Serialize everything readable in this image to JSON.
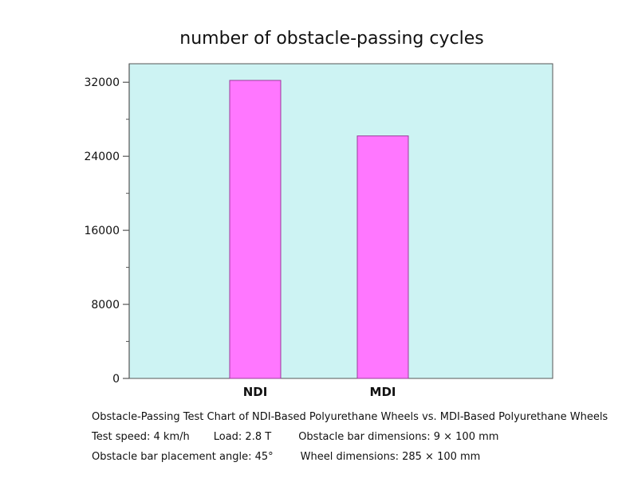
{
  "chart_data": {
    "type": "bar",
    "title": "number of obstacle-passing cycles",
    "categories": [
      "NDI",
      "MDI"
    ],
    "values": [
      32200,
      26200
    ],
    "ylim": [
      0,
      34000
    ],
    "yticks": [
      0,
      8000,
      16000,
      24000,
      32000
    ],
    "xlabel": "",
    "ylabel": "",
    "grid": false,
    "legend": "none",
    "colors": {
      "bar_fill": "#ff77ff",
      "bar_stroke": "#9a3c9a",
      "plot_background": "#cdf3f3",
      "axis": "#555555"
    }
  },
  "caption": {
    "line1": "Obstacle-Passing Test Chart of NDI-Based Polyurethane Wheels vs. MDI-Based Polyurethane Wheels",
    "test_speed": "Test speed: 4 km/h",
    "load": "Load: 2.8 T",
    "obstacle_dims": "Obstacle bar dimensions: 9 × 100 mm",
    "placement_angle": "Obstacle bar placement angle: 45°",
    "wheel_dims": "Wheel dimensions: 285 × 100 mm"
  }
}
